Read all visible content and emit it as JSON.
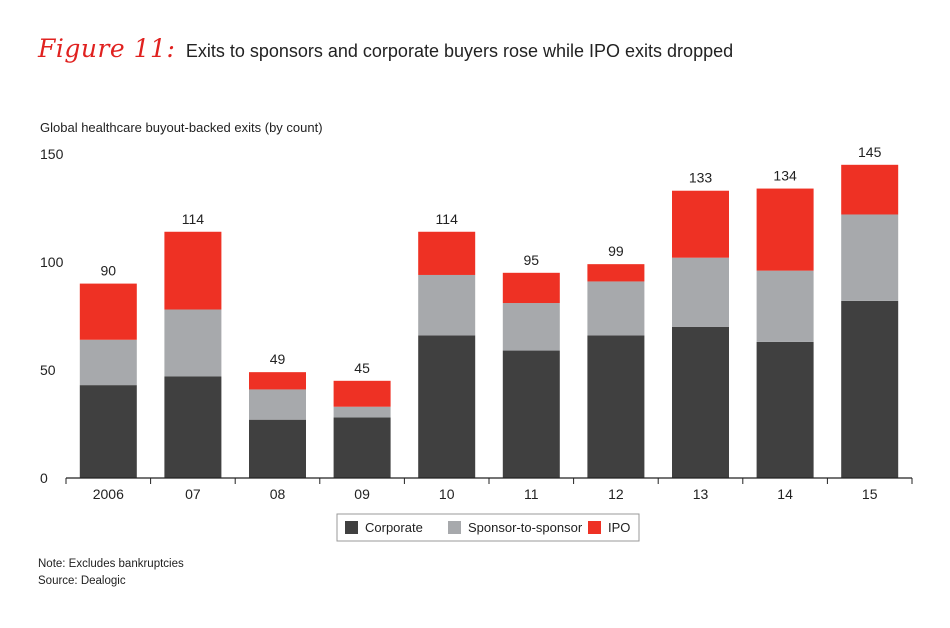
{
  "figure": {
    "label": "Figure 11:",
    "title": "Exits to sponsors and corporate buyers rose while IPO exits dropped"
  },
  "notes": {
    "note": "Note: Excludes bankruptcies",
    "source": "Source: Dealogic"
  },
  "colors": {
    "corporate": "#404040",
    "sponsor": "#a7a9ac",
    "ipo": "#ee3124",
    "axis": "#222222"
  },
  "chart_data": {
    "type": "bar",
    "stacked": true,
    "title": "",
    "ylabel": "Global healthcare buyout-backed exits (by count)",
    "xlabel": "",
    "ylim": [
      0,
      150
    ],
    "yticks": [
      0,
      50,
      100,
      150
    ],
    "categories": [
      "2006",
      "07",
      "08",
      "09",
      "10",
      "11",
      "12",
      "13",
      "14",
      "15"
    ],
    "series": [
      {
        "name": "Corporate",
        "color": "#404040",
        "values": [
          43,
          47,
          27,
          28,
          66,
          59,
          66,
          70,
          63,
          82
        ]
      },
      {
        "name": "Sponsor-to-sponsor",
        "color": "#a7a9ac",
        "values": [
          21,
          31,
          14,
          5,
          28,
          22,
          25,
          32,
          33,
          40
        ]
      },
      {
        "name": "IPO",
        "color": "#ee3124",
        "values": [
          26,
          36,
          8,
          12,
          20,
          14,
          8,
          31,
          38,
          23
        ]
      }
    ],
    "totals": [
      90,
      114,
      49,
      45,
      114,
      95,
      99,
      133,
      134,
      145
    ],
    "legend_position": "bottom-center",
    "grid": false
  }
}
